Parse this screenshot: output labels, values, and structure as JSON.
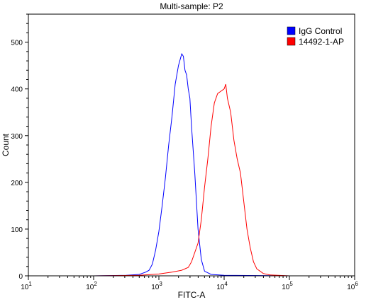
{
  "chart_data": {
    "type": "line",
    "title": "Multi-sample: P2",
    "xlabel": "FITC-A",
    "ylabel": "Count",
    "x_scale": "log",
    "xlim": [
      10,
      1000000
    ],
    "ylim": [
      0,
      560
    ],
    "grid": false,
    "legend_position": "top-right",
    "x_ticks": [
      {
        "base": "10",
        "exp": "1"
      },
      {
        "base": "10",
        "exp": "2"
      },
      {
        "base": "10",
        "exp": "3"
      },
      {
        "base": "10",
        "exp": "4"
      },
      {
        "base": "10",
        "exp": "5"
      },
      {
        "base": "10",
        "exp": "6"
      }
    ],
    "y_ticks": [
      "0",
      "100",
      "200",
      "300",
      "400",
      "500"
    ],
    "series": [
      {
        "name": "IgG Control",
        "color": "#0000ff",
        "points": [
          [
            100,
            0
          ],
          [
            316,
            1
          ],
          [
            501,
            3
          ],
          [
            631,
            8
          ],
          [
            708,
            12
          ],
          [
            794,
            25
          ],
          [
            891,
            55
          ],
          [
            1000,
            95
          ],
          [
            1122,
            150
          ],
          [
            1259,
            210
          ],
          [
            1413,
            280
          ],
          [
            1585,
            340
          ],
          [
            1778,
            410
          ],
          [
            1995,
            450
          ],
          [
            2239,
            475
          ],
          [
            2371,
            470
          ],
          [
            2512,
            440
          ],
          [
            2661,
            430
          ],
          [
            2818,
            400
          ],
          [
            2985,
            380
          ],
          [
            3162,
            320
          ],
          [
            3548,
            220
          ],
          [
            3981,
            100
          ],
          [
            4467,
            35
          ],
          [
            5012,
            10
          ],
          [
            6310,
            3
          ],
          [
            10000,
            1
          ],
          [
            100000,
            0
          ],
          [
            1000000,
            0
          ]
        ]
      },
      {
        "name": "14492-1-AP",
        "color": "#ff0000",
        "points": [
          [
            100,
            0
          ],
          [
            501,
            1
          ],
          [
            1000,
            4
          ],
          [
            1585,
            8
          ],
          [
            2239,
            12
          ],
          [
            2818,
            18
          ],
          [
            3162,
            30
          ],
          [
            3548,
            50
          ],
          [
            3981,
            70
          ],
          [
            4467,
            120
          ],
          [
            5012,
            190
          ],
          [
            5623,
            250
          ],
          [
            6310,
            320
          ],
          [
            7079,
            370
          ],
          [
            7943,
            390
          ],
          [
            8913,
            395
          ],
          [
            10000,
            400
          ],
          [
            10593,
            410
          ],
          [
            11220,
            380
          ],
          [
            12589,
            350
          ],
          [
            14125,
            290
          ],
          [
            15849,
            250
          ],
          [
            17783,
            220
          ],
          [
            19953,
            160
          ],
          [
            22387,
            100
          ],
          [
            25119,
            60
          ],
          [
            28184,
            30
          ],
          [
            31623,
            15
          ],
          [
            39811,
            5
          ],
          [
            50119,
            2
          ],
          [
            100000,
            0
          ],
          [
            1000000,
            0
          ]
        ]
      }
    ]
  }
}
